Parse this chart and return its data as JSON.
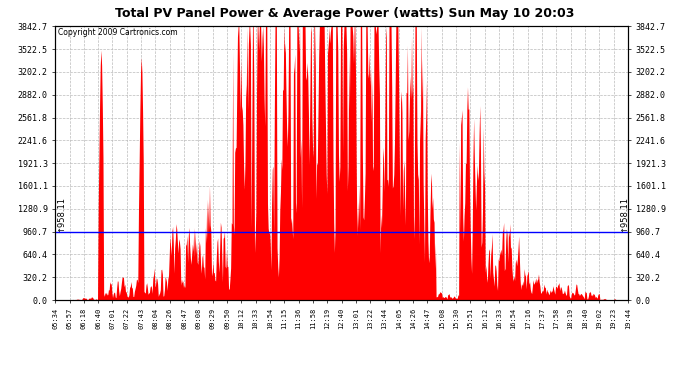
{
  "title": "Total PV Panel Power & Average Power (watts) Sun May 10 20:03",
  "copyright": "Copyright 2009 Cartronics.com",
  "avg_power": 958.11,
  "y_max": 3842.7,
  "y_min": 0.0,
  "y_ticks": [
    0.0,
    320.2,
    640.4,
    960.7,
    1280.9,
    1601.1,
    1921.3,
    2241.6,
    2561.8,
    2882.0,
    3202.2,
    3522.5,
    3842.7
  ],
  "x_labels": [
    "05:34",
    "05:57",
    "06:18",
    "06:40",
    "07:01",
    "07:22",
    "07:43",
    "08:04",
    "08:26",
    "08:47",
    "09:08",
    "09:29",
    "09:50",
    "10:12",
    "10:33",
    "10:54",
    "11:15",
    "11:36",
    "11:58",
    "12:19",
    "12:40",
    "13:01",
    "13:22",
    "13:44",
    "14:05",
    "14:26",
    "14:47",
    "15:08",
    "15:30",
    "15:51",
    "16:12",
    "16:33",
    "16:54",
    "17:16",
    "17:37",
    "17:58",
    "18:19",
    "18:40",
    "19:02",
    "19:23",
    "19:44"
  ],
  "bg_color": "#ffffff",
  "fill_color": "#ff0000",
  "line_color": "#0000ff",
  "grid_color": "#bbbbbb",
  "title_color": "#000000",
  "figsize": [
    6.9,
    3.75
  ],
  "dpi": 100
}
